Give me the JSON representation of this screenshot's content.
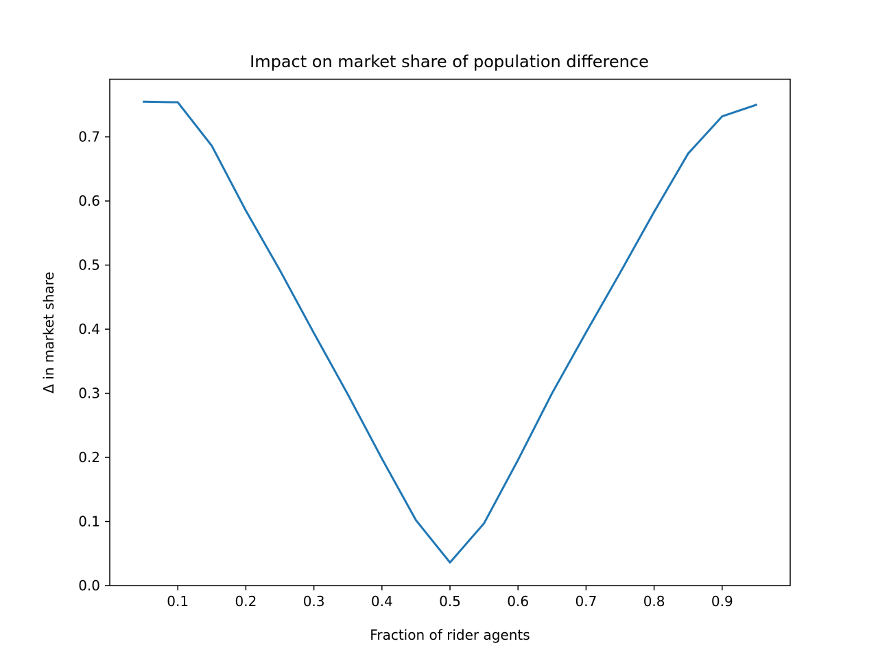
{
  "chart_data": {
    "type": "line",
    "title": "Impact on market share of population difference",
    "xlabel": "Fraction of rider agents",
    "ylabel": "Δ in market share",
    "xlim": [
      0.0,
      1.0
    ],
    "ylim": [
      0.0,
      0.79
    ],
    "xticks": [
      0.1,
      0.2,
      0.3,
      0.4,
      0.5,
      0.6,
      0.7,
      0.8,
      0.9
    ],
    "xtick_labels": [
      "0.1",
      "0.2",
      "0.3",
      "0.4",
      "0.5",
      "0.6",
      "0.7",
      "0.8",
      "0.9"
    ],
    "yticks": [
      0.0,
      0.1,
      0.2,
      0.3,
      0.4,
      0.5,
      0.6,
      0.7
    ],
    "ytick_labels": [
      "0.0",
      "0.1",
      "0.2",
      "0.3",
      "0.4",
      "0.5",
      "0.6",
      "0.7"
    ],
    "grid": false,
    "series": [
      {
        "color": "#1f77b4",
        "x": [
          0.05,
          0.1,
          0.15,
          0.2,
          0.25,
          0.3,
          0.35,
          0.4,
          0.45,
          0.5,
          0.55,
          0.6,
          0.65,
          0.7,
          0.75,
          0.8,
          0.85,
          0.9,
          0.95
        ],
        "y": [
          0.755,
          0.754,
          0.686,
          0.585,
          0.492,
          0.394,
          0.298,
          0.198,
          0.102,
          0.036,
          0.097,
          0.196,
          0.3,
          0.395,
          0.488,
          0.583,
          0.674,
          0.732,
          0.75
        ]
      }
    ]
  }
}
